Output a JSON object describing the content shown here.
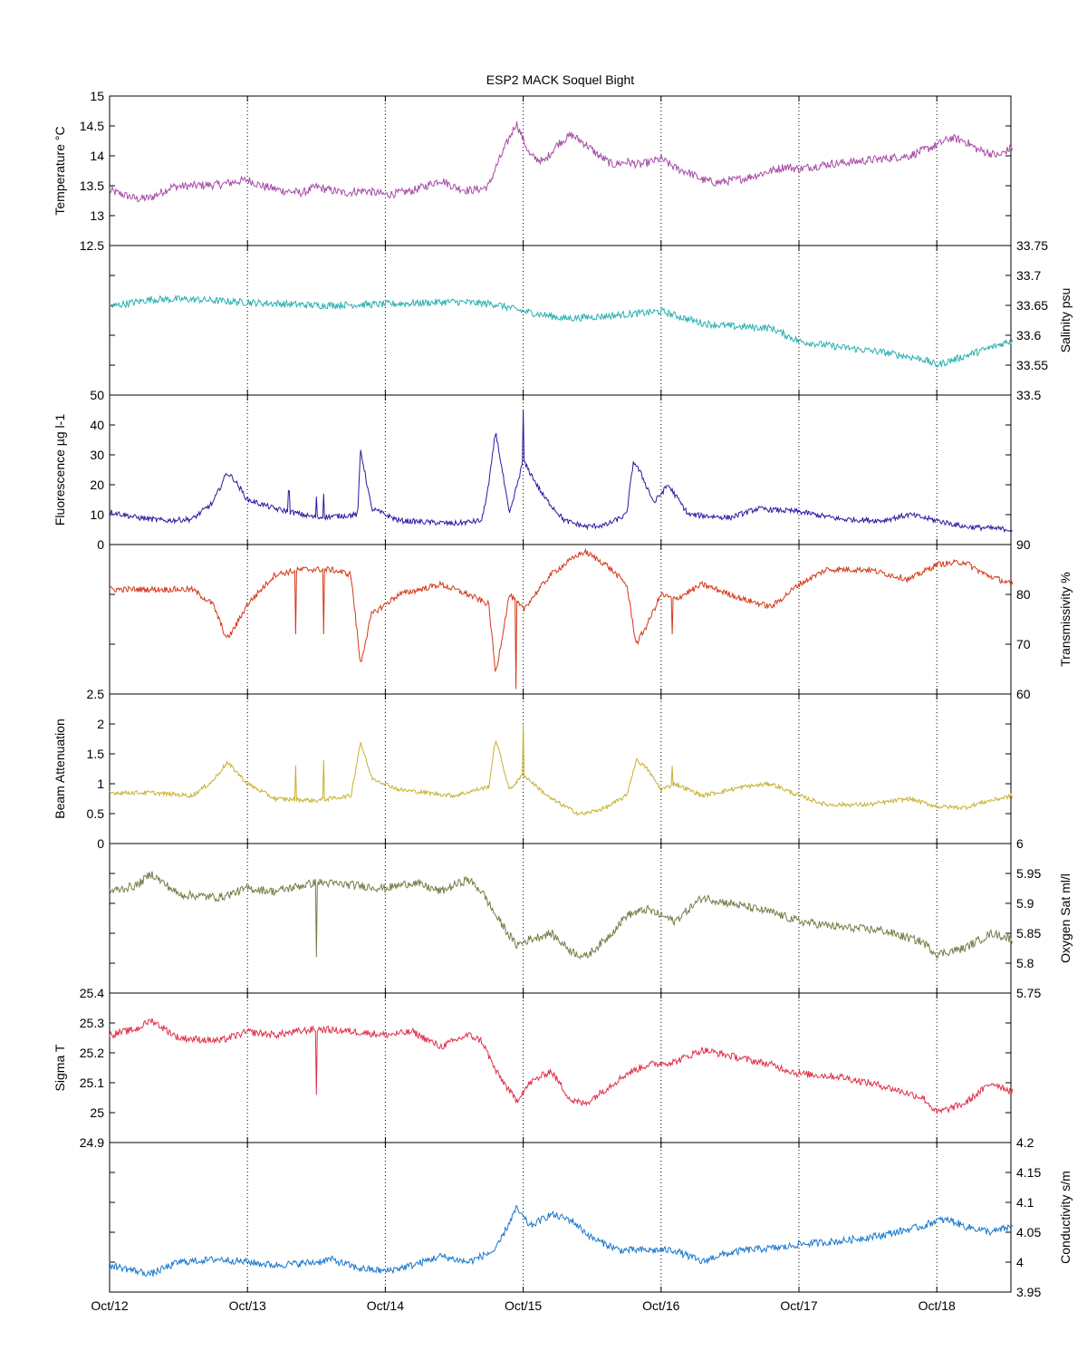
{
  "chart_data": {
    "type": "line",
    "title": "ESP2 MACK  Soquel Bight",
    "x_axis": {
      "tick_labels": [
        "Oct/12",
        "Oct/13",
        "Oct/14",
        "Oct/15",
        "Oct/16",
        "Oct/17",
        "Oct/18"
      ],
      "xlim_days": [
        0,
        6.55
      ],
      "grid": "vertical dotted at each day"
    },
    "panels": [
      {
        "ylabel": "Temperature °C",
        "label_side": "left",
        "color": "#a64ca6",
        "ylim": [
          12.5,
          15
        ],
        "ticks": [
          12.5,
          13,
          13.5,
          14,
          14.5,
          15
        ],
        "x": [
          0,
          0.1,
          0.2,
          0.3,
          0.45,
          0.6,
          0.8,
          1.0,
          1.1,
          1.25,
          1.4,
          1.5,
          1.55,
          1.7,
          1.85,
          2.0,
          2.1,
          2.2,
          2.3,
          2.4,
          2.5,
          2.6,
          2.7,
          2.75,
          2.8,
          2.9,
          2.95,
          3.05,
          3.15,
          3.25,
          3.35,
          3.45,
          3.55,
          3.65,
          3.75,
          3.85,
          4.0,
          4.1,
          4.2,
          4.3,
          4.4,
          4.6,
          4.8,
          4.9,
          5.0,
          5.2,
          5.4,
          5.6,
          5.8,
          6.0,
          6.1,
          6.2,
          6.3,
          6.45,
          6.55
        ],
        "values": [
          13.42,
          13.35,
          13.28,
          13.3,
          13.48,
          13.5,
          13.52,
          13.6,
          13.5,
          13.42,
          13.38,
          13.48,
          13.45,
          13.38,
          13.42,
          13.35,
          13.38,
          13.42,
          13.5,
          13.6,
          13.48,
          13.42,
          13.45,
          13.5,
          13.8,
          14.3,
          14.55,
          14.0,
          13.9,
          14.2,
          14.35,
          14.2,
          14.0,
          13.85,
          13.9,
          13.85,
          13.95,
          13.8,
          13.72,
          13.6,
          13.55,
          13.62,
          13.75,
          13.82,
          13.78,
          13.86,
          13.9,
          13.95,
          14.0,
          14.18,
          14.3,
          14.25,
          14.1,
          14.0,
          14.15
        ],
        "noise": 0.07
      },
      {
        "ylabel": "Salinity psu",
        "label_side": "right",
        "color": "#2ab0b0",
        "ylim": [
          33.5,
          33.75
        ],
        "ticks": [
          33.5,
          33.55,
          33.6,
          33.65,
          33.7,
          33.75
        ],
        "x": [
          0,
          0.3,
          0.6,
          1.0,
          1.5,
          2.0,
          2.5,
          2.8,
          3.0,
          3.3,
          3.6,
          4.0,
          4.3,
          4.5,
          4.8,
          5.0,
          5.3,
          5.6,
          5.9,
          6.0,
          6.2,
          6.4,
          6.55
        ],
        "values": [
          33.648,
          33.66,
          33.66,
          33.655,
          33.65,
          33.652,
          33.656,
          33.652,
          33.64,
          33.628,
          33.632,
          33.64,
          33.62,
          33.615,
          33.612,
          33.59,
          33.58,
          33.572,
          33.56,
          33.55,
          33.565,
          33.58,
          33.592
        ],
        "noise": 0.006
      },
      {
        "ylabel": "Fluorescence µg l-1",
        "label_side": "left",
        "color": "#2a1aa0",
        "ylim": [
          0,
          50
        ],
        "ticks": [
          0,
          10,
          20,
          30,
          40,
          50
        ],
        "x": [
          0,
          0.2,
          0.4,
          0.6,
          0.75,
          0.85,
          0.9,
          1.0,
          1.2,
          1.5,
          1.8,
          1.82,
          1.9,
          2.1,
          2.5,
          2.7,
          2.75,
          2.8,
          2.9,
          3.0,
          3.15,
          3.3,
          3.45,
          3.6,
          3.75,
          3.8,
          3.85,
          3.95,
          4.05,
          4.2,
          4.5,
          4.7,
          5.0,
          5.3,
          5.6,
          5.8,
          6.0,
          6.2,
          6.55
        ],
        "values": [
          11,
          9,
          8,
          8.5,
          14,
          24,
          22,
          15,
          12,
          9,
          10,
          32,
          12,
          8,
          7,
          8,
          20,
          38,
          10,
          28,
          16,
          8,
          6,
          6.5,
          10,
          28,
          24,
          14,
          20,
          10,
          9,
          12,
          11,
          8.5,
          8,
          10,
          8,
          6,
          5
        ],
        "spikes": [
          [
            1.3,
            18
          ],
          [
            1.5,
            16
          ],
          [
            1.55,
            17
          ],
          [
            3.0,
            45
          ]
        ],
        "noise": 0.9
      },
      {
        "ylabel": "Transmissivity %",
        "label_side": "right",
        "color": "#d43818",
        "ylim": [
          60,
          90
        ],
        "ticks": [
          60,
          70,
          80,
          90
        ],
        "x": [
          0,
          0.3,
          0.6,
          0.75,
          0.85,
          0.9,
          1.0,
          1.2,
          1.4,
          1.6,
          1.75,
          1.82,
          1.9,
          2.1,
          2.4,
          2.6,
          2.75,
          2.8,
          2.9,
          3.0,
          3.2,
          3.4,
          3.45,
          3.6,
          3.75,
          3.82,
          3.9,
          4.0,
          4.1,
          4.3,
          4.6,
          4.8,
          5.0,
          5.2,
          5.5,
          5.8,
          6.0,
          6.2,
          6.35,
          6.55
        ],
        "values": [
          81,
          81,
          81,
          78,
          71,
          73,
          78,
          84,
          85,
          85,
          84,
          66,
          76,
          80,
          82,
          80,
          78,
          64,
          80,
          77,
          84,
          88,
          88.5,
          86,
          82,
          70,
          74,
          80,
          79,
          82,
          79,
          77.5,
          82,
          85,
          85,
          83,
          86,
          86.5,
          84,
          82
        ],
        "spikes": [
          [
            1.35,
            72
          ],
          [
            1.55,
            72
          ],
          [
            2.95,
            61
          ],
          [
            4.08,
            72
          ]
        ],
        "noise": 0.6
      },
      {
        "ylabel": "Beam Attenuation",
        "label_side": "left",
        "color": "#c8b030",
        "ylim": [
          0,
          2.5
        ],
        "ticks": [
          0,
          0.5,
          1,
          1.5,
          2,
          2.5
        ],
        "x": [
          0,
          0.3,
          0.6,
          0.75,
          0.85,
          0.9,
          1.0,
          1.2,
          1.5,
          1.75,
          1.82,
          1.9,
          2.1,
          2.5,
          2.75,
          2.8,
          2.9,
          3.0,
          3.2,
          3.4,
          3.45,
          3.6,
          3.75,
          3.82,
          3.9,
          4.0,
          4.1,
          4.3,
          4.6,
          4.8,
          5.0,
          5.2,
          5.5,
          5.8,
          6.0,
          6.2,
          6.35,
          6.55
        ],
        "values": [
          0.85,
          0.85,
          0.8,
          1.05,
          1.35,
          1.25,
          1.0,
          0.75,
          0.72,
          0.8,
          1.7,
          1.1,
          0.9,
          0.8,
          0.95,
          1.75,
          0.9,
          1.15,
          0.75,
          0.5,
          0.5,
          0.6,
          0.8,
          1.4,
          1.25,
          0.9,
          1.0,
          0.8,
          0.95,
          1.0,
          0.8,
          0.65,
          0.65,
          0.75,
          0.62,
          0.6,
          0.7,
          0.8
        ],
        "spikes": [
          [
            1.35,
            1.3
          ],
          [
            1.55,
            1.4
          ],
          [
            3.0,
            2.0
          ],
          [
            4.08,
            1.3
          ]
        ],
        "noise": 0.035
      },
      {
        "ylabel": "Oxygen Sat ml/l",
        "label_side": "right",
        "color": "#7a7a48",
        "ylim": [
          5.75,
          6.0
        ],
        "ticks": [
          5.75,
          5.8,
          5.85,
          5.9,
          5.95,
          6.0
        ],
        "x": [
          0,
          0.2,
          0.3,
          0.5,
          0.8,
          1.0,
          1.2,
          1.5,
          1.8,
          2.0,
          2.2,
          2.4,
          2.6,
          2.7,
          2.8,
          2.95,
          3.05,
          3.2,
          3.35,
          3.45,
          3.6,
          3.75,
          3.9,
          4.1,
          4.3,
          4.5,
          4.8,
          5.0,
          5.3,
          5.6,
          5.9,
          6.0,
          6.2,
          6.4,
          6.55
        ],
        "values": [
          5.92,
          5.93,
          5.95,
          5.915,
          5.91,
          5.925,
          5.92,
          5.935,
          5.93,
          5.925,
          5.935,
          5.92,
          5.94,
          5.92,
          5.88,
          5.83,
          5.84,
          5.85,
          5.82,
          5.81,
          5.84,
          5.88,
          5.89,
          5.87,
          5.91,
          5.9,
          5.885,
          5.87,
          5.86,
          5.855,
          5.835,
          5.815,
          5.825,
          5.85,
          5.84
        ],
        "spikes": [
          [
            1.5,
            5.81
          ]
        ],
        "noise": 0.007
      },
      {
        "ylabel": "Sigma T",
        "label_side": "left",
        "color": "#e03048",
        "ylim": [
          24.9,
          25.4
        ],
        "ticks": [
          24.9,
          25,
          25.1,
          25.2,
          25.3,
          25.4
        ],
        "x": [
          0,
          0.2,
          0.3,
          0.5,
          0.8,
          1.0,
          1.2,
          1.5,
          1.8,
          2.0,
          2.2,
          2.4,
          2.6,
          2.7,
          2.8,
          2.95,
          3.05,
          3.2,
          3.35,
          3.45,
          3.6,
          3.75,
          3.9,
          4.1,
          4.3,
          4.5,
          4.8,
          5.0,
          5.3,
          5.6,
          5.9,
          6.0,
          6.2,
          6.4,
          6.55
        ],
        "values": [
          25.26,
          25.28,
          25.31,
          25.25,
          25.24,
          25.27,
          25.26,
          25.28,
          25.27,
          25.26,
          25.27,
          25.22,
          25.26,
          25.24,
          25.14,
          25.04,
          25.1,
          25.14,
          25.04,
          25.03,
          25.08,
          25.13,
          25.16,
          25.17,
          25.21,
          25.19,
          25.16,
          25.13,
          25.12,
          25.09,
          25.05,
          25.0,
          25.03,
          25.1,
          25.07
        ],
        "spikes": [
          [
            1.5,
            25.06
          ]
        ],
        "noise": 0.012
      },
      {
        "ylabel": "Conductivity s/m",
        "label_side": "right",
        "color": "#1878d0",
        "ylim": [
          3.95,
          4.2
        ],
        "ticks": [
          3.95,
          4.0,
          4.05,
          4.1,
          4.15,
          4.2
        ],
        "x": [
          0,
          0.1,
          0.3,
          0.5,
          0.8,
          1.0,
          1.2,
          1.5,
          1.6,
          1.8,
          2.0,
          2.2,
          2.4,
          2.6,
          2.8,
          2.95,
          3.05,
          3.2,
          3.35,
          3.5,
          3.7,
          3.9,
          4.1,
          4.3,
          4.4,
          4.6,
          4.9,
          5.0,
          5.3,
          5.6,
          5.9,
          6.0,
          6.1,
          6.2,
          6.4,
          6.55
        ],
        "values": [
          3.995,
          3.99,
          3.98,
          4.0,
          4.005,
          4.0,
          3.995,
          4.0,
          4.005,
          3.99,
          3.985,
          3.995,
          4.01,
          4.0,
          4.02,
          4.09,
          4.06,
          4.08,
          4.07,
          4.04,
          4.02,
          4.02,
          4.02,
          4.0,
          4.01,
          4.02,
          4.025,
          4.03,
          4.035,
          4.045,
          4.06,
          4.07,
          4.07,
          4.06,
          4.05,
          4.06
        ],
        "noise": 0.006
      }
    ]
  }
}
